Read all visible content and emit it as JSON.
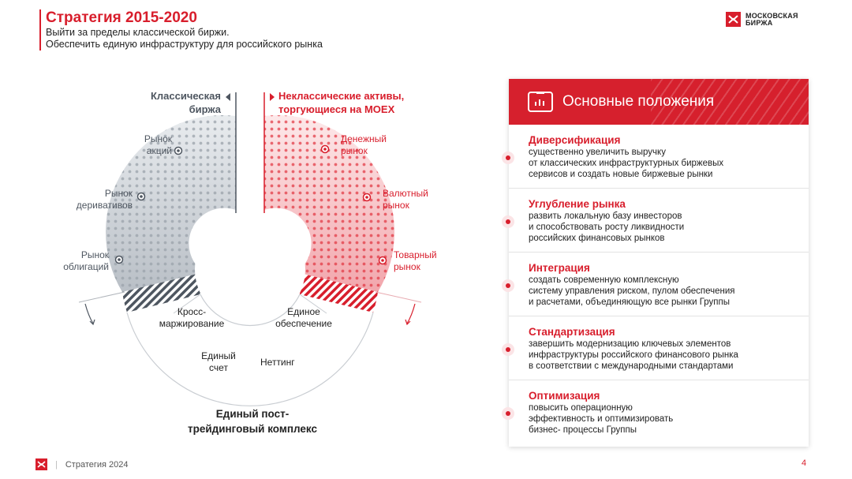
{
  "header": {
    "title": "Стратегия 2015-2020",
    "subtitle_line1": "Выйти за пределы классической биржи.",
    "subtitle_line2": "Обеспечить единую инфраструктуру для российского рынка"
  },
  "logo": {
    "line1": "МОСКОВСКАЯ",
    "line2": "БИРЖА"
  },
  "diagram": {
    "left_heading": [
      "Классическая",
      "биржа"
    ],
    "right_heading": [
      "Неклассические активы,",
      "торгующиеся на MOEX"
    ],
    "left_markets": [
      [
        "Рынок",
        "акций"
      ],
      [
        "Рынок",
        "деривативов"
      ],
      [
        "Рынок",
        "облигаций"
      ]
    ],
    "right_markets": [
      [
        "Денежный",
        "рынок"
      ],
      [
        "Валютный",
        "рынок"
      ],
      [
        "Товарный",
        "рынок"
      ]
    ],
    "inner_labels": {
      "cross": [
        "Кросс-",
        "маржирование"
      ],
      "collateral": [
        "Единое",
        "обеспечение"
      ],
      "account": [
        "Единый",
        "счет"
      ],
      "netting": "Неттинг"
    },
    "bottom_label": [
      "Единый пост-",
      "трейдинговый комплекс"
    ]
  },
  "card": {
    "title": "Основные положения",
    "items": [
      {
        "title": "Диверсификация",
        "lines": [
          "существенно увеличить выручку",
          "от классических инфраструктурных биржевых",
          "сервисов и создать новые биржевые рынки"
        ]
      },
      {
        "title": "Углубление рынка",
        "lines": [
          "развить локальную базу инвесторов",
          "и способствовать росту ликвидности",
          "российских финансовых рынков"
        ]
      },
      {
        "title": "Интеграция",
        "lines": [
          "создать современную комплексную",
          "систему управления риском, пулом обеспечения",
          "и расчетами, объединяющую все рынки Группы"
        ]
      },
      {
        "title": "Стандартизация",
        "lines": [
          "завершить модернизацию ключевых элементов",
          "инфраструктуры российского финансового рынка",
          "в соответствии с международными стандартами"
        ]
      },
      {
        "title": "Оптимизация",
        "lines": [
          "повысить операционную",
          "эффективность и оптимизировать",
          "бизнес- процессы Группы"
        ]
      }
    ]
  },
  "footer": {
    "text": "Стратегия 2024",
    "page": "4"
  },
  "colors": {
    "accent": "#d81e2c",
    "gray": "#4e5660"
  }
}
